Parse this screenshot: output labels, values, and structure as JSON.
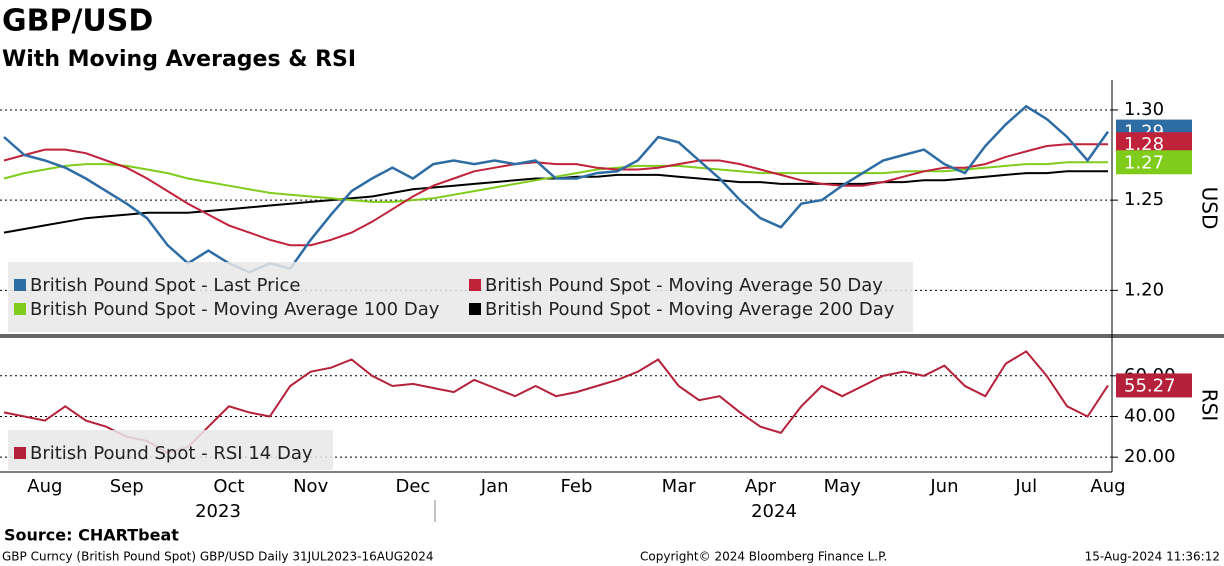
{
  "chart_data": [
    {
      "type": "line",
      "title": "GBP/USD",
      "subtitle": "With Moving Averages & RSI",
      "y_axis_label": "USD",
      "categories": [
        null,
        null,
        "Aug",
        null,
        null,
        null,
        "Sep",
        null,
        null,
        null,
        null,
        "Oct",
        null,
        null,
        null,
        "Nov",
        null,
        null,
        null,
        null,
        "Dec",
        null,
        null,
        null,
        "Jan",
        null,
        null,
        null,
        "Feb",
        null,
        null,
        null,
        null,
        "Mar",
        null,
        null,
        null,
        "Apr",
        null,
        null,
        null,
        "May",
        null,
        null,
        null,
        null,
        "Jun",
        null,
        null,
        null,
        "Jul",
        null,
        null,
        null,
        "Aug"
      ],
      "x_groups": [
        "2023",
        "2024"
      ],
      "ylim": [
        1.178,
        1.3155
      ],
      "yticks": [
        {
          "value": 1.3,
          "label": "1.30"
        },
        1.25,
        {
          "value": 1.2,
          "label": "1.20"
        }
      ],
      "grid": true,
      "series": [
        {
          "name": "British Pound Spot - Last Price",
          "color": "#2e6ca4",
          "last_label": "1.29",
          "values": [
            1.285,
            1.275,
            1.272,
            1.268,
            1.262,
            1.255,
            1.248,
            1.24,
            1.225,
            1.215,
            1.222,
            1.215,
            1.21,
            1.215,
            1.212,
            1.228,
            1.242,
            1.255,
            1.262,
            1.268,
            1.262,
            1.27,
            1.272,
            1.27,
            1.272,
            1.27,
            1.272,
            1.262,
            1.262,
            1.265,
            1.266,
            1.272,
            1.285,
            1.282,
            1.272,
            1.262,
            1.25,
            1.24,
            1.235,
            1.248,
            1.25,
            1.258,
            1.265,
            1.272,
            1.275,
            1.278,
            1.27,
            1.265,
            1.28,
            1.292,
            1.302,
            1.295,
            1.285,
            1.272,
            1.288
          ]
        },
        {
          "name": "British Pound Spot - Moving Average 50 Day",
          "color": "#c0223a",
          "last_label": "1.28",
          "values": [
            1.272,
            1.275,
            1.278,
            1.278,
            1.276,
            1.272,
            1.268,
            1.262,
            1.255,
            1.248,
            1.242,
            1.236,
            1.232,
            1.228,
            1.225,
            1.225,
            1.228,
            1.232,
            1.238,
            1.245,
            1.252,
            1.258,
            1.262,
            1.266,
            1.268,
            1.27,
            1.271,
            1.27,
            1.27,
            1.268,
            1.267,
            1.267,
            1.268,
            1.27,
            1.272,
            1.272,
            1.27,
            1.267,
            1.264,
            1.261,
            1.259,
            1.258,
            1.258,
            1.26,
            1.263,
            1.266,
            1.268,
            1.268,
            1.27,
            1.274,
            1.277,
            1.28,
            1.281,
            1.281,
            1.281
          ]
        },
        {
          "name": "British Pound Spot - Moving Average 100 Day",
          "color": "#7fcc1c",
          "last_label": "1.27",
          "values": [
            1.262,
            1.265,
            1.267,
            1.269,
            1.27,
            1.27,
            1.269,
            1.267,
            1.265,
            1.262,
            1.26,
            1.258,
            1.256,
            1.254,
            1.253,
            1.252,
            1.251,
            1.25,
            1.249,
            1.249,
            1.25,
            1.251,
            1.253,
            1.255,
            1.257,
            1.259,
            1.261,
            1.263,
            1.265,
            1.267,
            1.268,
            1.269,
            1.269,
            1.269,
            1.268,
            1.267,
            1.266,
            1.265,
            1.265,
            1.265,
            1.265,
            1.265,
            1.265,
            1.265,
            1.266,
            1.266,
            1.266,
            1.267,
            1.268,
            1.269,
            1.27,
            1.27,
            1.271,
            1.271,
            1.271
          ]
        },
        {
          "name": "British Pound Spot - Moving Average 200 Day",
          "color": "#000000",
          "values": [
            1.232,
            1.234,
            1.236,
            1.238,
            1.24,
            1.241,
            1.242,
            1.243,
            1.243,
            1.243,
            1.244,
            1.245,
            1.246,
            1.247,
            1.248,
            1.249,
            1.25,
            1.251,
            1.252,
            1.254,
            1.256,
            1.257,
            1.258,
            1.259,
            1.26,
            1.261,
            1.262,
            1.262,
            1.263,
            1.263,
            1.264,
            1.264,
            1.264,
            1.263,
            1.262,
            1.261,
            1.26,
            1.26,
            1.259,
            1.259,
            1.259,
            1.259,
            1.259,
            1.26,
            1.26,
            1.261,
            1.261,
            1.262,
            1.263,
            1.264,
            1.265,
            1.265,
            1.266,
            1.266,
            1.266
          ]
        }
      ]
    },
    {
      "type": "line",
      "y_axis_label": "RSI",
      "ylim": [
        13.7,
        77.6
      ],
      "yticks": [
        {
          "value": 60,
          "label": "60.00"
        },
        {
          "value": 40,
          "label": "40.00"
        },
        {
          "value": 20,
          "label": "20.00"
        }
      ],
      "grid": true,
      "series": [
        {
          "name": "British Pound Spot - RSI 14 Day",
          "color": "#b5213a",
          "last_label": "55.27",
          "values": [
            42,
            40,
            38,
            45,
            38,
            35,
            30,
            28,
            22,
            25,
            35,
            45,
            42,
            40,
            55,
            62,
            64,
            68,
            60,
            55,
            56,
            54,
            52,
            58,
            54,
            50,
            55,
            50,
            52,
            55,
            58,
            62,
            68,
            55,
            48,
            50,
            42,
            35,
            32,
            45,
            55,
            50,
            55,
            60,
            62,
            60,
            65,
            55,
            50,
            66,
            72,
            60,
            45,
            40,
            55.27
          ]
        }
      ]
    }
  ],
  "footer": {
    "source": "Source: CHARTbeat",
    "security": "GBP Curncy (British Pound Spot) GBP/USD  Daily 31JUL2023-16AUG2024",
    "copyright": "Copyright© 2024 Bloomberg Finance L.P.",
    "timestamp": "15-Aug-2024 11:36:12"
  }
}
